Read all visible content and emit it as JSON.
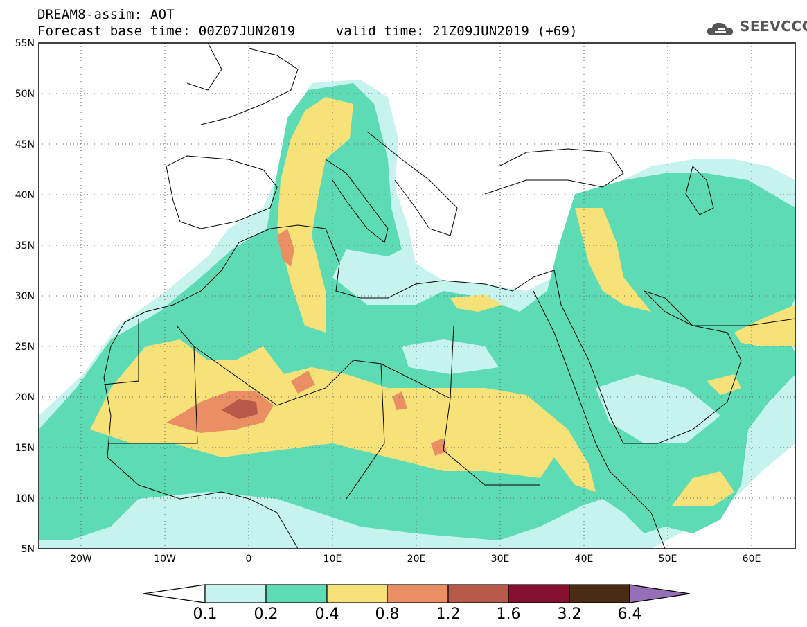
{
  "header": {
    "line1": "DREAM8-assim: AOT",
    "line2": "Forecast base time: 00Z07JUN2019     valid time: 21Z09JUN2019 (+69)",
    "logo_text": "SEEVCCC",
    "logo_icon": "cloud-icon"
  },
  "map": {
    "lon_range": [
      -25,
      65
    ],
    "lat_range": [
      5,
      55
    ],
    "lat_ticks": [
      {
        "value": 55,
        "label": "55N"
      },
      {
        "value": 50,
        "label": "50N"
      },
      {
        "value": 45,
        "label": "45N"
      },
      {
        "value": 40,
        "label": "40N"
      },
      {
        "value": 35,
        "label": "35N"
      },
      {
        "value": 30,
        "label": "30N"
      },
      {
        "value": 25,
        "label": "25N"
      },
      {
        "value": 20,
        "label": "20N"
      },
      {
        "value": 15,
        "label": "15N"
      },
      {
        "value": 10,
        "label": "10N"
      },
      {
        "value": 5,
        "label": "5N"
      }
    ],
    "lon_ticks": [
      {
        "value": -20,
        "label": "20W"
      },
      {
        "value": -10,
        "label": "10W"
      },
      {
        "value": 0,
        "label": "0"
      },
      {
        "value": 10,
        "label": "10E"
      },
      {
        "value": 20,
        "label": "20E"
      },
      {
        "value": 30,
        "label": "30E"
      },
      {
        "value": 40,
        "label": "40E"
      },
      {
        "value": 50,
        "label": "50E"
      },
      {
        "value": 60,
        "label": "60E"
      }
    ]
  },
  "colorbar": {
    "colors": [
      "#ffffff",
      "#c6f3ee",
      "#5ddbb5",
      "#f7e27a",
      "#ea8f63",
      "#b85a4a",
      "#85102f",
      "#4a2c15",
      "#9670b6"
    ],
    "labels": [
      "0.1",
      "0.2",
      "0.4",
      "0.8",
      "1.2",
      "1.6",
      "3.2",
      "6.4"
    ]
  }
}
